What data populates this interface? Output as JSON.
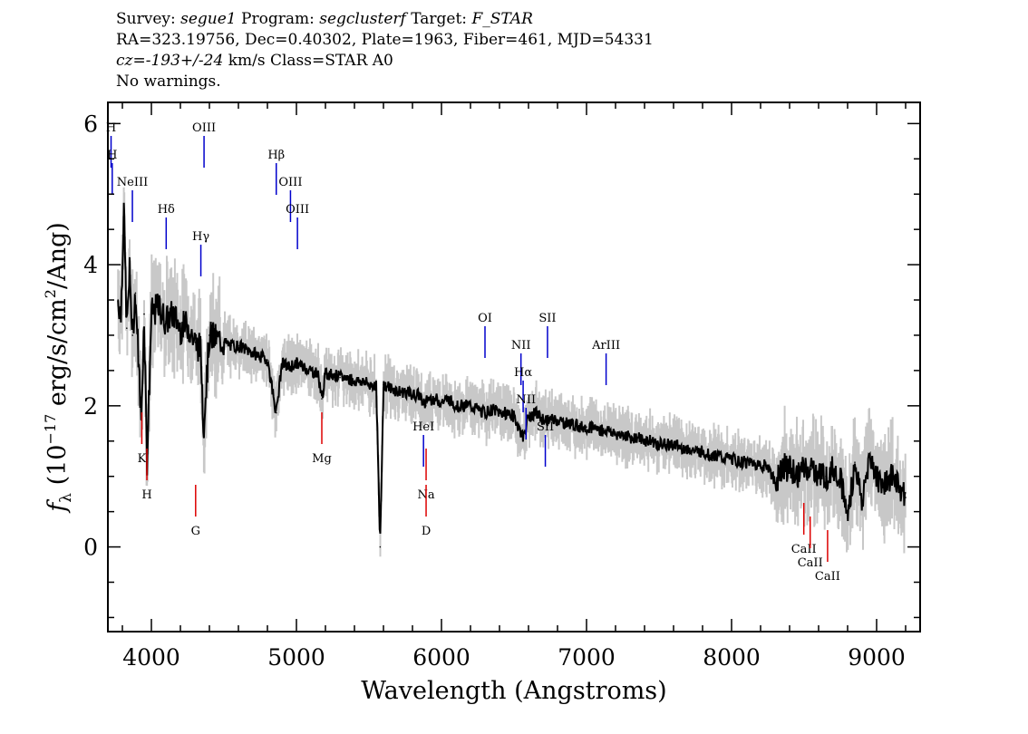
{
  "header": {
    "line1": {
      "survey_label": "Survey:",
      "survey": "segue1",
      "program_label": "Program:",
      "program": "segclusterf",
      "target_label": "Target:",
      "target": "F_STAR"
    },
    "line2": "RA=323.19756, Dec=0.40302, Plate=1963, Fiber=461, MJD=54331",
    "line3": {
      "cz_label": "cz=",
      "cz": "-193+/-24",
      "cz_unit": "km/s Class=STAR A0"
    },
    "line4": "No warnings."
  },
  "colors": {
    "flux": "#000000",
    "error_band": "#c8c8c8",
    "emission_lines": "#0000cc",
    "absorption_lines": "#dd0000",
    "axes": "#000000"
  },
  "chart_data": {
    "type": "line",
    "xlabel": "Wavelength (Angstroms)",
    "ylabel_parts": {
      "f": "f",
      "sub": "λ",
      "open": " (10",
      "exp": "−17",
      "mid": " erg/s/cm",
      "exp2": "2",
      "close": "/Ang)"
    },
    "xlim": [
      3700,
      9300
    ],
    "ylim": [
      -1.2,
      6.3
    ],
    "x_ticks": [
      4000,
      5000,
      6000,
      7000,
      8000,
      9000
    ],
    "x_tick_labels": [
      "4000",
      "5000",
      "6000",
      "7000",
      "8000",
      "9000"
    ],
    "y_ticks": [
      0,
      2,
      4,
      6
    ],
    "y_tick_labels": [
      "0",
      "2",
      "4",
      "6"
    ],
    "x_minor_step": 200,
    "y_minor_step": 0.5,
    "series": [
      {
        "role": "flux",
        "x": [
          3770,
          3790,
          3810,
          3830,
          3850,
          3870,
          3890,
          3910,
          3930,
          3950,
          3970,
          4000,
          4050,
          4100,
          4150,
          4200,
          4250,
          4300,
          4340,
          4360,
          4400,
          4450,
          4500,
          4550,
          4600,
          4650,
          4700,
          4750,
          4800,
          4861,
          4900,
          4950,
          5000,
          5050,
          5100,
          5150,
          5175,
          5200,
          5250,
          5300,
          5350,
          5400,
          5450,
          5500,
          5550,
          5577,
          5600,
          5650,
          5700,
          5750,
          5800,
          5850,
          5893,
          5900,
          5950,
          6000,
          6050,
          6100,
          6150,
          6200,
          6250,
          6300,
          6350,
          6400,
          6450,
          6500,
          6563,
          6600,
          6650,
          6700,
          6750,
          6800,
          6850,
          6900,
          6950,
          7000,
          7050,
          7100,
          7150,
          7200,
          7250,
          7300,
          7350,
          7400,
          7450,
          7500,
          7550,
          7600,
          7650,
          7700,
          7750,
          7800,
          7850,
          7900,
          7950,
          8000,
          8050,
          8100,
          8150,
          8200,
          8250,
          8300,
          8350,
          8400,
          8450,
          8500,
          8550,
          8600,
          8650,
          8700,
          8750,
          8800,
          8850,
          8900,
          8950,
          9000,
          9050,
          9100,
          9150,
          9200
        ],
        "y": [
          3.5,
          3.3,
          4.8,
          3.1,
          3.9,
          3.0,
          3.6,
          2.7,
          1.8,
          3.3,
          1.2,
          3.3,
          3.4,
          3.2,
          3.3,
          3.1,
          3.15,
          2.9,
          2.8,
          1.7,
          3.0,
          2.95,
          2.9,
          2.85,
          2.85,
          2.8,
          2.75,
          2.7,
          2.65,
          1.9,
          2.6,
          2.55,
          2.6,
          2.55,
          2.5,
          2.45,
          2.1,
          2.45,
          2.45,
          2.4,
          2.4,
          2.35,
          2.35,
          2.3,
          2.3,
          0.0,
          2.3,
          2.25,
          2.2,
          2.2,
          2.15,
          2.15,
          2.0,
          2.1,
          2.1,
          2.05,
          2.1,
          2.0,
          2.0,
          2.0,
          1.95,
          1.9,
          1.95,
          1.9,
          1.9,
          1.85,
          1.55,
          1.85,
          1.9,
          1.8,
          1.8,
          1.8,
          1.75,
          1.75,
          1.7,
          1.7,
          1.7,
          1.65,
          1.65,
          1.6,
          1.6,
          1.55,
          1.55,
          1.5,
          1.5,
          1.45,
          1.45,
          1.45,
          1.4,
          1.4,
          1.35,
          1.35,
          1.3,
          1.3,
          1.25,
          1.25,
          1.2,
          1.2,
          1.2,
          1.15,
          1.15,
          0.9,
          1.15,
          1.1,
          1.0,
          1.1,
          1.1,
          1.05,
          1.0,
          1.1,
          1.0,
          0.4,
          1.2,
          0.6,
          1.3,
          1.0,
          0.9,
          1.0,
          0.9,
          0.7
        ]
      }
    ],
    "emission_lines": [
      {
        "label": "H",
        "wavelength": 3722
      },
      {
        "label": "H",
        "wavelength": 3730
      },
      {
        "label": "NeIII",
        "wavelength": 3869
      },
      {
        "label": "Hδ",
        "wavelength": 4102
      },
      {
        "label": "Hγ",
        "wavelength": 4341
      },
      {
        "label": "OIII",
        "wavelength": 4363
      },
      {
        "label": "Hβ",
        "wavelength": 4861
      },
      {
        "label": "OIII",
        "wavelength": 4959
      },
      {
        "label": "OIII",
        "wavelength": 5007
      },
      {
        "label": "HeI",
        "wavelength": 5876
      },
      {
        "label": "OI",
        "wavelength": 6300
      },
      {
        "label": "NII",
        "wavelength": 6548
      },
      {
        "label": "Hα",
        "wavelength": 6563
      },
      {
        "label": "NII",
        "wavelength": 6583
      },
      {
        "label": "SII",
        "wavelength": 6716
      },
      {
        "label": "SII",
        "wavelength": 6731
      },
      {
        "label": "ArIII",
        "wavelength": 7135
      }
    ],
    "absorption_lines": [
      {
        "label": "K",
        "wavelength": 3934
      },
      {
        "label": "H",
        "wavelength": 3969
      },
      {
        "label": "G",
        "wavelength": 4305
      },
      {
        "label": "Mg",
        "wavelength": 5175
      },
      {
        "label": "Na",
        "wavelength": 5894
      },
      {
        "label": "D",
        "wavelength": 5894
      },
      {
        "label": "CaII",
        "wavelength": 8498
      },
      {
        "label": "CaII",
        "wavelength": 8542
      },
      {
        "label": "CaII",
        "wavelength": 8662
      }
    ]
  }
}
